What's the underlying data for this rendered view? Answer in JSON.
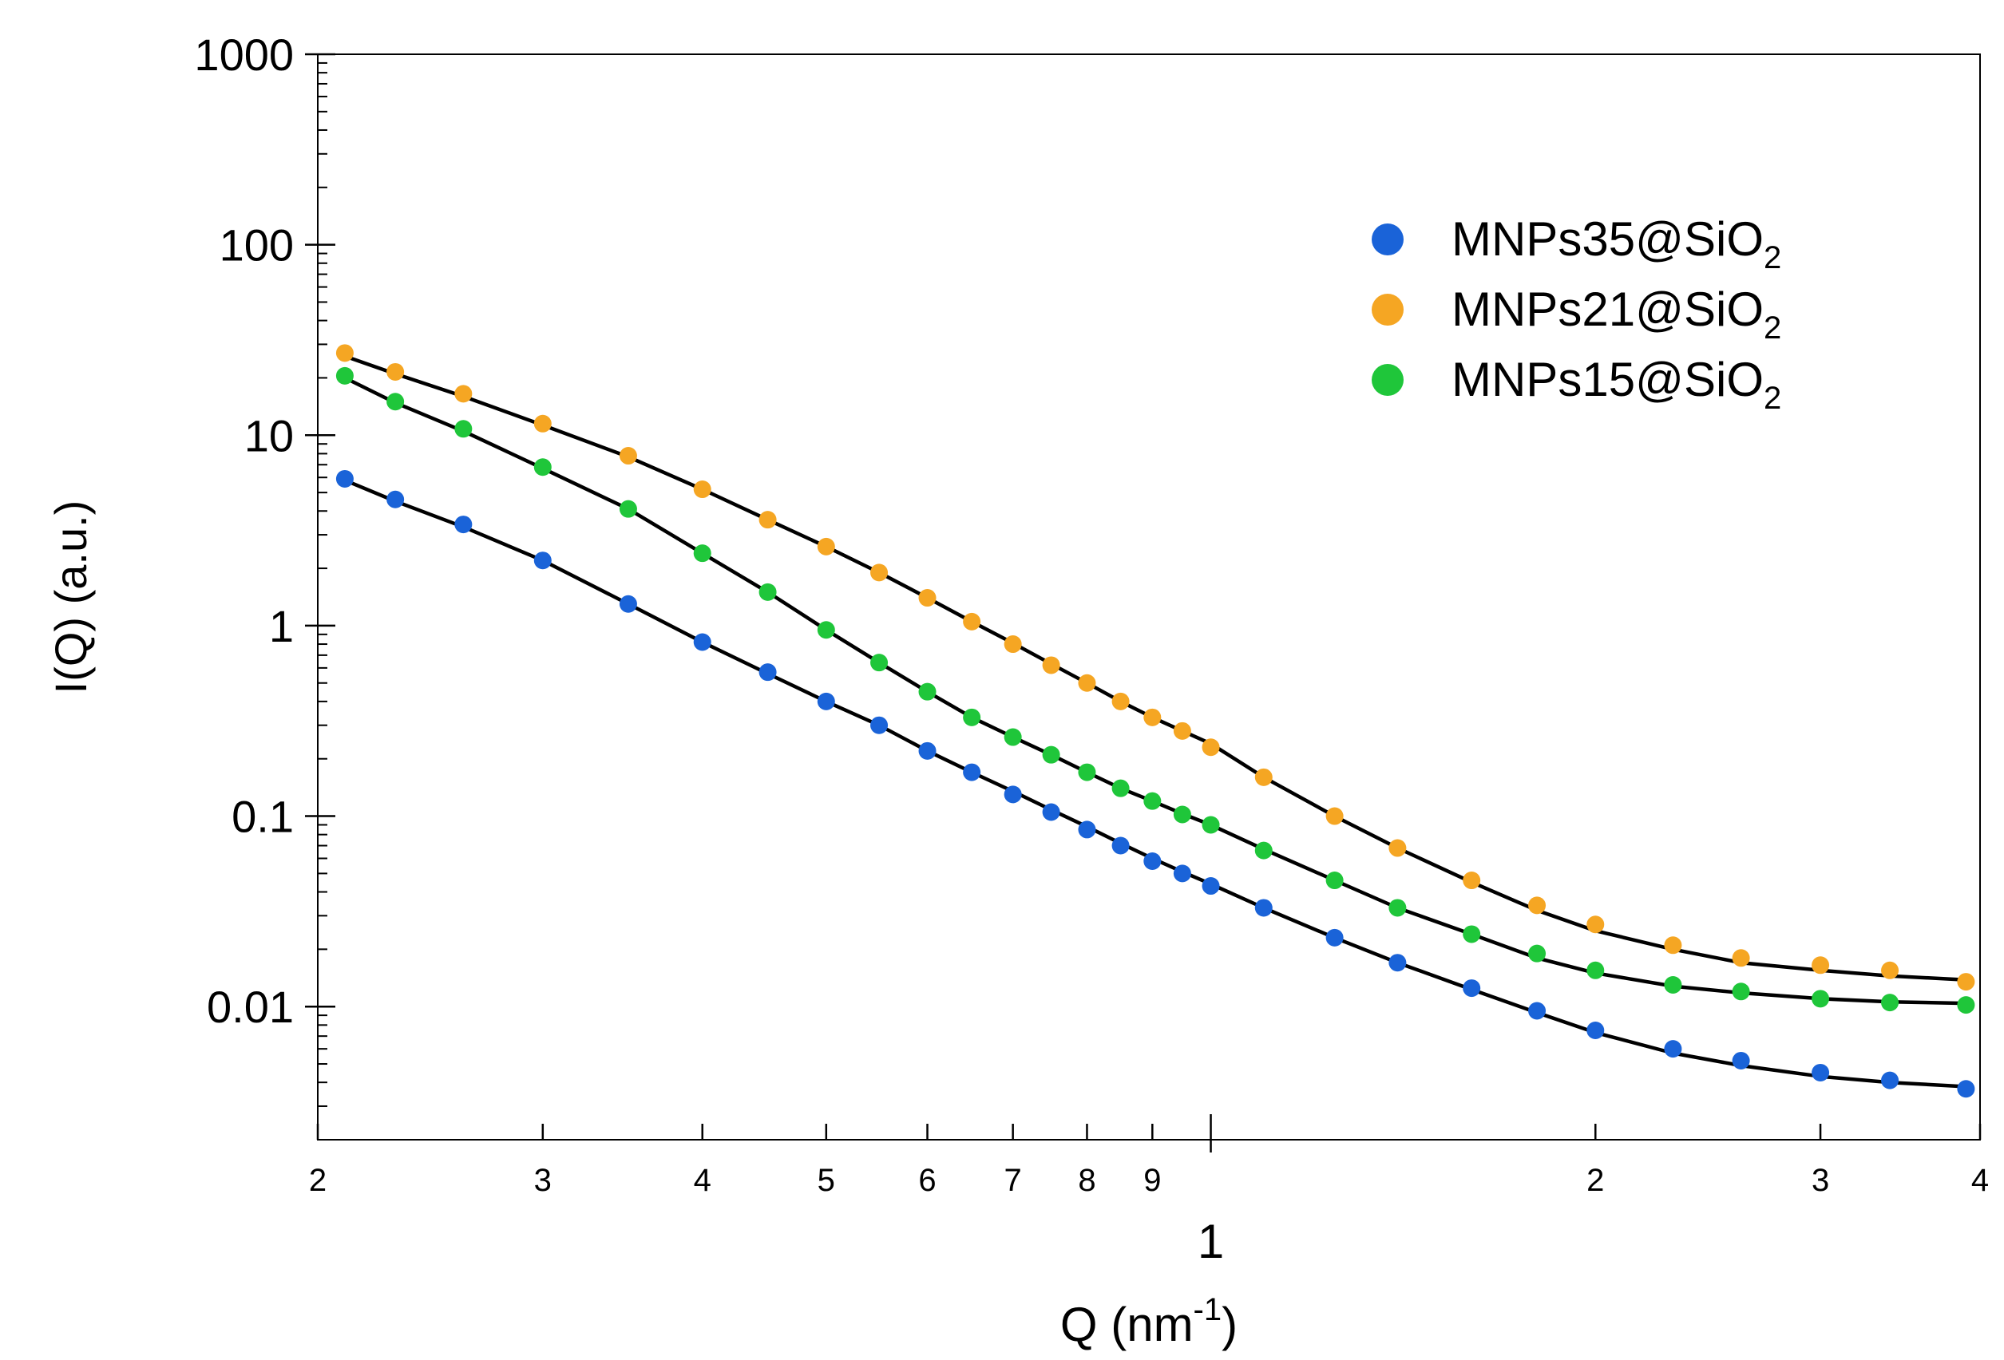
{
  "chart_data": {
    "type": "scatter",
    "title": "",
    "xlabel": "Q (nm",
    "xlabel_sup": "-1",
    "xlabel_close": ")",
    "ylabel": "I(Q) (a.u.)",
    "xscale": "log",
    "yscale": "log",
    "xlim": [
      0.2,
      4.0
    ],
    "ylim": [
      0.002,
      1000
    ],
    "x_ticks": [
      {
        "value": 0.2,
        "label": "2"
      },
      {
        "value": 0.3,
        "label": "3"
      },
      {
        "value": 0.4,
        "label": "4"
      },
      {
        "value": 0.5,
        "label": "5"
      },
      {
        "value": 0.6,
        "label": "6"
      },
      {
        "value": 0.7,
        "label": "7"
      },
      {
        "value": 0.8,
        "label": "8"
      },
      {
        "value": 0.9,
        "label": "9"
      },
      {
        "value": 1.0,
        "label": ""
      },
      {
        "value": 2.0,
        "label": "2"
      },
      {
        "value": 3.0,
        "label": "3"
      },
      {
        "value": 4.0,
        "label": "4"
      }
    ],
    "x_decade_label": "1",
    "y_ticks": [
      {
        "value": 0.01,
        "label": "0.01"
      },
      {
        "value": 0.1,
        "label": "0.1"
      },
      {
        "value": 1,
        "label": "1"
      },
      {
        "value": 10,
        "label": "10"
      },
      {
        "value": 100,
        "label": "100"
      },
      {
        "value": 1000,
        "label": "1000"
      }
    ],
    "legend_position": "top-right",
    "legend_sub": "2",
    "series": [
      {
        "name": "MNPs35@SiO",
        "color": "#1a63d8",
        "fit_color": "#000000",
        "x": [
          0.21,
          0.23,
          0.26,
          0.3,
          0.35,
          0.4,
          0.45,
          0.5,
          0.55,
          0.6,
          0.65,
          0.7,
          0.75,
          0.8,
          0.85,
          0.9,
          0.95,
          1.0,
          1.1,
          1.25,
          1.4,
          1.6,
          1.8,
          2.0,
          2.3,
          2.6,
          3.0,
          3.4,
          3.9
        ],
        "y": [
          5.9,
          4.6,
          3.4,
          2.2,
          1.3,
          0.82,
          0.57,
          0.4,
          0.3,
          0.22,
          0.17,
          0.13,
          0.105,
          0.085,
          0.07,
          0.058,
          0.05,
          0.043,
          0.033,
          0.023,
          0.017,
          0.0125,
          0.0095,
          0.0075,
          0.006,
          0.0052,
          0.0045,
          0.0041,
          0.0037
        ],
        "fit_y": [
          5.8,
          4.5,
          3.3,
          2.2,
          1.3,
          0.82,
          0.56,
          0.4,
          0.3,
          0.22,
          0.17,
          0.135,
          0.108,
          0.088,
          0.072,
          0.06,
          0.051,
          0.044,
          0.033,
          0.023,
          0.017,
          0.0123,
          0.0093,
          0.0073,
          0.0057,
          0.0049,
          0.0043,
          0.004,
          0.0038
        ]
      },
      {
        "name": "MNPs21@SiO",
        "color": "#f5a623",
        "fit_color": "#000000",
        "x": [
          0.21,
          0.23,
          0.26,
          0.3,
          0.35,
          0.4,
          0.45,
          0.5,
          0.55,
          0.6,
          0.65,
          0.7,
          0.75,
          0.8,
          0.85,
          0.9,
          0.95,
          1.0,
          1.1,
          1.25,
          1.4,
          1.6,
          1.8,
          2.0,
          2.3,
          2.6,
          3.0,
          3.4,
          3.9
        ],
        "y": [
          27.0,
          21.5,
          16.5,
          11.5,
          7.8,
          5.2,
          3.6,
          2.6,
          1.9,
          1.4,
          1.05,
          0.8,
          0.62,
          0.5,
          0.4,
          0.33,
          0.28,
          0.23,
          0.16,
          0.1,
          0.068,
          0.046,
          0.034,
          0.027,
          0.021,
          0.018,
          0.0165,
          0.0155,
          0.0135
        ],
        "fit_y": [
          26.0,
          21.0,
          16.0,
          11.3,
          7.7,
          5.2,
          3.6,
          2.6,
          1.9,
          1.4,
          1.05,
          0.81,
          0.63,
          0.5,
          0.4,
          0.33,
          0.28,
          0.24,
          0.16,
          0.1,
          0.068,
          0.045,
          0.032,
          0.025,
          0.02,
          0.017,
          0.0155,
          0.0145,
          0.0138
        ]
      },
      {
        "name": "MNPs15@SiO",
        "color": "#1fc63a",
        "fit_color": "#000000",
        "x": [
          0.21,
          0.23,
          0.26,
          0.3,
          0.35,
          0.4,
          0.45,
          0.5,
          0.55,
          0.6,
          0.65,
          0.7,
          0.75,
          0.8,
          0.85,
          0.9,
          0.95,
          1.0,
          1.1,
          1.25,
          1.4,
          1.6,
          1.8,
          2.0,
          2.3,
          2.6,
          3.0,
          3.4,
          3.9
        ],
        "y": [
          20.5,
          15.0,
          10.8,
          6.8,
          4.1,
          2.4,
          1.5,
          0.95,
          0.64,
          0.45,
          0.33,
          0.26,
          0.21,
          0.17,
          0.14,
          0.12,
          0.102,
          0.09,
          0.066,
          0.046,
          0.033,
          0.024,
          0.019,
          0.0155,
          0.013,
          0.012,
          0.011,
          0.0105,
          0.0102
        ],
        "fit_y": [
          20.0,
          14.8,
          10.5,
          6.7,
          4.1,
          2.4,
          1.5,
          0.95,
          0.64,
          0.45,
          0.33,
          0.26,
          0.21,
          0.17,
          0.14,
          0.12,
          0.103,
          0.09,
          0.067,
          0.046,
          0.033,
          0.024,
          0.018,
          0.015,
          0.0128,
          0.0118,
          0.011,
          0.0106,
          0.0104
        ]
      }
    ]
  }
}
